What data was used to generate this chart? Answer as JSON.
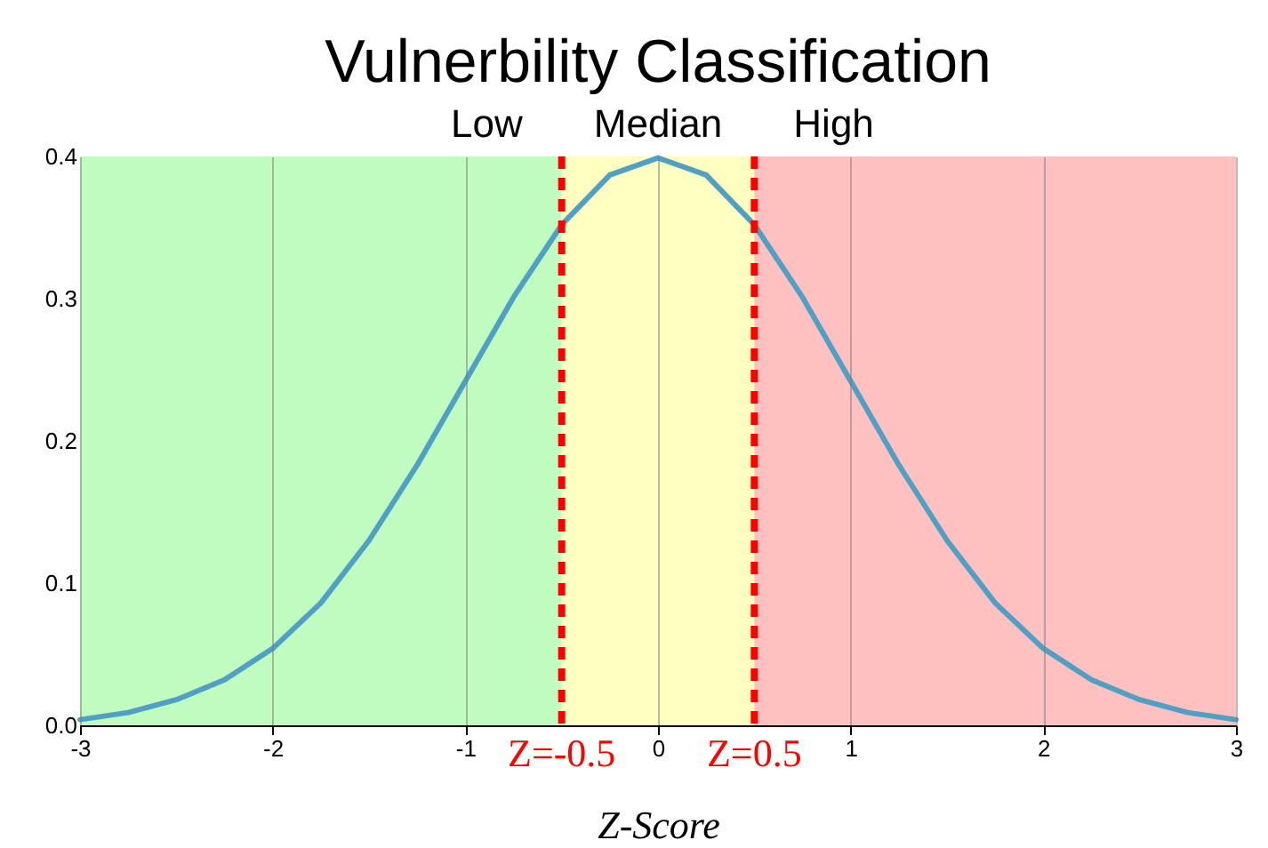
{
  "chart_data": {
    "type": "line",
    "title": "Vulnerbility Classification",
    "xlabel": "Z-Score",
    "x": [
      -3,
      -2.75,
      -2.5,
      -2.25,
      -2,
      -1.75,
      -1.5,
      -1.25,
      -1,
      -0.75,
      -0.5,
      -0.25,
      0,
      0.25,
      0.5,
      0.75,
      1,
      1.25,
      1.5,
      1.75,
      2,
      2.25,
      2.5,
      2.75,
      3
    ],
    "series": [
      {
        "color": "#4fa0c4",
        "values": [
          0.004,
          0.009,
          0.018,
          0.032,
          0.054,
          0.086,
          0.13,
          0.183,
          0.242,
          0.301,
          0.352,
          0.387,
          0.399,
          0.387,
          0.352,
          0.301,
          0.242,
          0.183,
          0.13,
          0.086,
          0.054,
          0.032,
          0.018,
          0.009,
          0.004
        ]
      }
    ],
    "xlim": [
      -3,
      3
    ],
    "xticks": [
      -3,
      -2,
      -1,
      0,
      1,
      2,
      3
    ],
    "ylim": [
      0,
      0.4
    ],
    "yticks": [
      {
        "value": 0,
        "label": "0.0"
      },
      0.1,
      0.2,
      0.3,
      0.4
    ],
    "bands": [
      {
        "axis": "x",
        "from": -3,
        "to": -0.5,
        "label": "Low",
        "color": "#c0fbc0"
      },
      {
        "axis": "x",
        "from": -0.5,
        "to": 0.5,
        "label": "Median",
        "color": "#ffffc0"
      },
      {
        "axis": "x",
        "from": 0.5,
        "to": 3,
        "label": "High",
        "color": "#ffc0c0"
      }
    ],
    "ref_lines": [
      {
        "axis": "x",
        "value": -0.5,
        "label": "Z=-0.5",
        "color": "#ff0000",
        "line_style": "dashed"
      },
      {
        "axis": "x",
        "value": 0.5,
        "label": "Z=0.5",
        "color": "#ff0000",
        "line_style": "dashed"
      }
    ],
    "grid": "x",
    "marker": "none",
    "line_style": "solid"
  }
}
